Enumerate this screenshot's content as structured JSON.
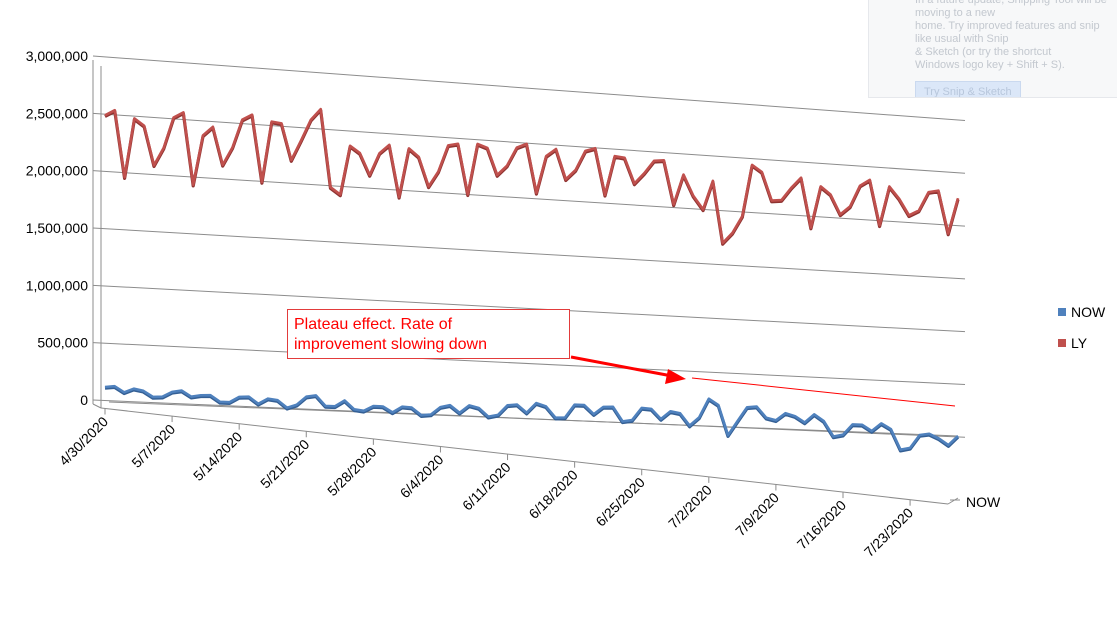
{
  "chart_data": {
    "type": "line",
    "title": "",
    "xlabel": "",
    "ylabel": "",
    "ylim": [
      0,
      3000000
    ],
    "y_ticks": [
      "3,000,000",
      "2,500,000",
      "2,000,000",
      "1,500,000",
      "1,000,000",
      "500,000",
      "0"
    ],
    "x_tick_labels": [
      "4/30/2020",
      "5/7/2020",
      "5/14/2020",
      "5/21/2020",
      "5/28/2020",
      "6/4/2020",
      "6/11/2020",
      "6/18/2020",
      "6/25/2020",
      "7/2/2020",
      "7/9/2020",
      "7/16/2020",
      "7/23/2020"
    ],
    "x_start": "4/30/2020",
    "depth_axis_label": "NOW",
    "grid": true,
    "legend_position": "right",
    "series": [
      {
        "name": "NOW",
        "color": "#4f81bd",
        "values": [
          150000,
          160000,
          110000,
          145000,
          130000,
          80000,
          85000,
          130000,
          145000,
          95000,
          110000,
          115000,
          60000,
          60000,
          110000,
          115000,
          55000,
          105000,
          95000,
          30000,
          60000,
          135000,
          150000,
          60000,
          60000,
          115000,
          40000,
          30000,
          75000,
          75000,
          25000,
          80000,
          75000,
          10000,
          20000,
          90000,
          110000,
          45000,
          115000,
          95000,
          20000,
          40000,
          130000,
          140000,
          70000,
          160000,
          135000,
          35000,
          40000,
          160000,
          160000,
          80000,
          150000,
          155000,
          25000,
          40000,
          155000,
          150000,
          60000,
          135000,
          120000,
          10000,
          90000,
          265000,
          210000,
          -65000,
          70000,
          200000,
          210000,
          110000,
          90000,
          160000,
          135000,
          80000,
          160000,
          100000,
          -40000,
          -20000,
          80000,
          80000,
          25000,
          100000,
          50000,
          -140000,
          -120000,
          5000,
          20000,
          -20000,
          -80000,
          10000
        ]
      },
      {
        "name": "LY",
        "color": "#c0504d",
        "values": [
          2520000,
          2570000,
          1990000,
          2510000,
          2450000,
          2110000,
          2270000,
          2540000,
          2590000,
          1960000,
          2400000,
          2480000,
          2150000,
          2310000,
          2560000,
          2610000,
          2020000,
          2560000,
          2550000,
          2230000,
          2410000,
          2600000,
          2700000,
          2010000,
          1950000,
          2390000,
          2330000,
          2140000,
          2340000,
          2420000,
          1960000,
          2400000,
          2330000,
          2070000,
          2210000,
          2450000,
          2470000,
          2020000,
          2480000,
          2450000,
          2210000,
          2300000,
          2470000,
          2510000,
          2070000,
          2410000,
          2480000,
          2210000,
          2300000,
          2480000,
          2510000,
          2090000,
          2450000,
          2440000,
          2210000,
          2310000,
          2430000,
          2440000,
          2040000,
          2320000,
          2130000,
          2010000,
          2280000,
          1710000,
          1810000,
          1970000,
          2450000,
          2390000,
          2130000,
          2140000,
          2260000,
          2360000,
          1900000,
          2290000,
          2220000,
          2040000,
          2120000,
          2320000,
          2380000,
          1960000,
          2330000,
          2220000,
          2070000,
          2120000,
          2300000,
          2320000,
          1920000,
          2260000
        ]
      }
    ],
    "annotation": {
      "text_line1": "Plateau effect. Rate of",
      "text_line2": "improvement slowing down"
    }
  },
  "overlay": {
    "lines": [
      "In a future update, Snipping Tool will be moving to a new",
      "home. Try improved features and snip like usual with Snip",
      "& Sketch (or try the shortcut",
      "Windows logo key + Shift + S)."
    ],
    "button_label": "Try Snip & Sketch"
  },
  "legend": {
    "now_label": "NOW",
    "ly_label": "LY"
  }
}
